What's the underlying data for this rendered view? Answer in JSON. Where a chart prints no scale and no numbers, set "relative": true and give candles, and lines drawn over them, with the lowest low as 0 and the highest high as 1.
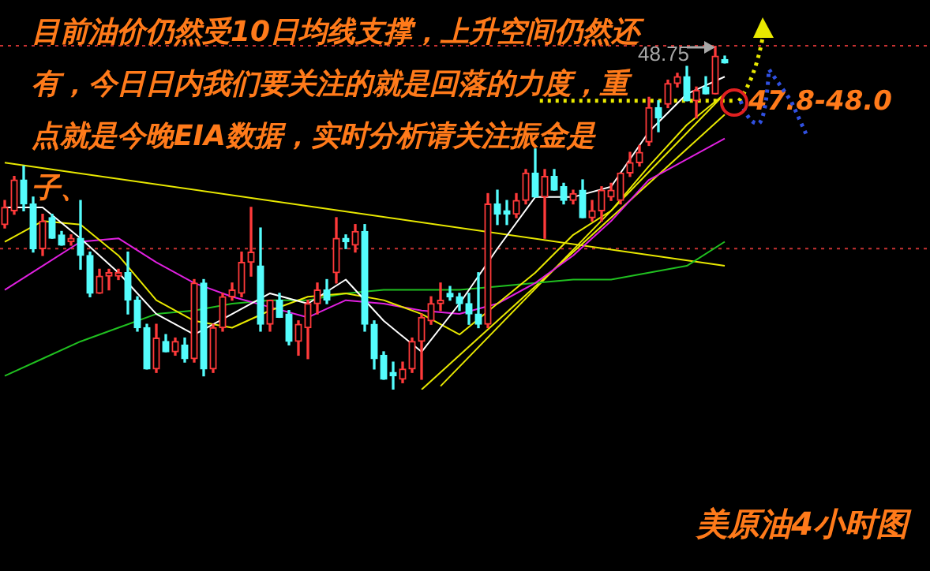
{
  "chart_data": {
    "type": "candlestick",
    "title": "目前油价仍然受10日均线支撑，上升空间仍然还有，今日日内我们要关注的就是回落的力度，重点就是今晚EIA数据，实时分析请关注振金是子、",
    "relative": true,
    "categories": [
      null,
      null,
      null,
      null,
      null,
      null,
      null,
      null,
      null,
      null,
      null,
      null,
      null,
      null,
      null,
      null,
      null,
      null,
      null,
      null,
      null,
      null,
      null,
      null,
      null,
      null,
      null,
      null,
      null,
      null,
      null,
      null,
      null,
      null,
      null,
      null,
      null,
      null,
      null,
      null,
      null,
      null,
      null,
      null,
      null,
      null,
      null,
      null,
      null,
      null,
      null,
      null,
      null,
      null,
      null,
      null,
      null,
      null,
      null,
      null,
      null,
      null,
      null,
      null,
      null,
      null,
      null,
      null,
      null,
      null,
      null,
      null,
      null,
      null,
      null,
      null,
      null
    ],
    "ohlc": [
      [
        0.48,
        0.55,
        0.47,
        0.53
      ],
      [
        0.52,
        0.62,
        0.51,
        0.61
      ],
      [
        0.61,
        0.65,
        0.52,
        0.54
      ],
      [
        0.54,
        0.56,
        0.4,
        0.41
      ],
      [
        0.41,
        0.51,
        0.39,
        0.49
      ],
      [
        0.5,
        0.51,
        0.44,
        0.44
      ],
      [
        0.45,
        0.46,
        0.42,
        0.42
      ],
      [
        0.43,
        0.45,
        0.42,
        0.44
      ],
      [
        0.44,
        0.55,
        0.35,
        0.39
      ],
      [
        0.39,
        0.4,
        0.27,
        0.28
      ],
      [
        0.28,
        0.35,
        0.28,
        0.33
      ],
      [
        0.33,
        0.35,
        0.29,
        0.34
      ],
      [
        0.33,
        0.35,
        0.32,
        0.34
      ],
      [
        0.34,
        0.4,
        0.22,
        0.26
      ],
      [
        0.26,
        0.27,
        0.17,
        0.18
      ],
      [
        0.18,
        0.19,
        0.06,
        0.06
      ],
      [
        0.06,
        0.19,
        0.05,
        0.15
      ],
      [
        0.14,
        0.16,
        0.11,
        0.11
      ],
      [
        0.11,
        0.15,
        0.1,
        0.14
      ],
      [
        0.13,
        0.15,
        0.08,
        0.09
      ],
      [
        0.09,
        0.32,
        0.08,
        0.31
      ],
      [
        0.31,
        0.32,
        0.04,
        0.06
      ],
      [
        0.06,
        0.19,
        0.05,
        0.18
      ],
      [
        0.18,
        0.28,
        0.17,
        0.27
      ],
      [
        0.27,
        0.31,
        0.26,
        0.29
      ],
      [
        0.28,
        0.4,
        0.27,
        0.37
      ],
      [
        0.37,
        0.53,
        0.33,
        0.4
      ],
      [
        0.36,
        0.47,
        0.17,
        0.19
      ],
      [
        0.19,
        0.26,
        0.17,
        0.26
      ],
      [
        0.26,
        0.28,
        0.21,
        0.21
      ],
      [
        0.22,
        0.23,
        0.13,
        0.14
      ],
      [
        0.14,
        0.2,
        0.1,
        0.19
      ],
      [
        0.18,
        0.26,
        0.09,
        0.25
      ],
      [
        0.25,
        0.31,
        0.22,
        0.29
      ],
      [
        0.29,
        0.32,
        0.25,
        0.26
      ],
      [
        0.34,
        0.5,
        0.31,
        0.44
      ],
      [
        0.44,
        0.45,
        0.41,
        0.43
      ],
      [
        0.42,
        0.48,
        0.4,
        0.46
      ],
      [
        0.46,
        0.48,
        0.17,
        0.19
      ],
      [
        0.19,
        0.2,
        0.06,
        0.09
      ],
      [
        0.1,
        0.11,
        0.03,
        0.03
      ],
      [
        0.05,
        0.08,
        0,
        0.04
      ],
      [
        0.03,
        0.08,
        0.02,
        0.06
      ],
      [
        0.06,
        0.15,
        0.05,
        0.14
      ],
      [
        0.14,
        0.22,
        0.03,
        0.21
      ],
      [
        0.2,
        0.27,
        0.19,
        0.25
      ],
      [
        0.25,
        0.31,
        0.23,
        0.26
      ],
      [
        0.28,
        0.3,
        0.26,
        0.27
      ],
      [
        0.27,
        0.28,
        0.23,
        0.25
      ],
      [
        0.25,
        0.28,
        0.19,
        0.22
      ],
      [
        0.22,
        0.34,
        0.18,
        0.19
      ],
      [
        0.19,
        0.57,
        0.18,
        0.54
      ],
      [
        0.54,
        0.58,
        0.48,
        0.51
      ],
      [
        0.52,
        0.55,
        0.48,
        0.51
      ],
      [
        0.51,
        0.57,
        0.5,
        0.55
      ],
      [
        0.55,
        0.64,
        0.54,
        0.63
      ],
      [
        0.63,
        0.7,
        0.56,
        0.56
      ],
      [
        0.56,
        0.64,
        0.44,
        0.62
      ],
      [
        0.62,
        0.64,
        0.58,
        0.58
      ],
      [
        0.59,
        0.6,
        0.54,
        0.55
      ],
      [
        0.55,
        0.58,
        0.54,
        0.57
      ],
      [
        0.58,
        0.61,
        0.5,
        0.5
      ],
      [
        0.5,
        0.55,
        0.49,
        0.52
      ],
      [
        0.52,
        0.59,
        0.49,
        0.58
      ],
      [
        0.56,
        0.6,
        0.55,
        0.58
      ],
      [
        0.55,
        0.63,
        0.54,
        0.63
      ],
      [
        0.63,
        0.69,
        0.62,
        0.66
      ],
      [
        0.66,
        0.71,
        0.65,
        0.69
      ],
      [
        0.72,
        0.85,
        0.71,
        0.82
      ],
      [
        0.82,
        0.84,
        0.75,
        0.79
      ],
      [
        0.83,
        0.9,
        0.82,
        0.89
      ],
      [
        0.89,
        0.92,
        0.88,
        0.91
      ],
      [
        0.91,
        0.94,
        0.84,
        0.84
      ],
      [
        0.84,
        0.88,
        0.79,
        0.87
      ],
      [
        0.88,
        0.91,
        0.86,
        0.86
      ],
      [
        0.86,
        1,
        0.86,
        0.97
      ],
      [
        0.96,
        0.97,
        0.95,
        0.95
      ]
    ],
    "series": [
      {
        "type": "line",
        "color": "#ffffff",
        "values": [
          0.53,
          null,
          null,
          null,
          0.53,
          null,
          null,
          null,
          0.44,
          null,
          null,
          null,
          0.34,
          null,
          null,
          null,
          0.22,
          null,
          null,
          null,
          0.16,
          null,
          null,
          null,
          0.22,
          null,
          null,
          null,
          0.28,
          null,
          null,
          null,
          0.25,
          null,
          null,
          null,
          0.32,
          null,
          null,
          null,
          0.2,
          null,
          null,
          null,
          0.11,
          null,
          null,
          null,
          0.25,
          null,
          null,
          null,
          0.41,
          null,
          null,
          null,
          0.56,
          null,
          null,
          null,
          0.56,
          null,
          null,
          null,
          0.59,
          null,
          null,
          null,
          0.75,
          null,
          null,
          null,
          0.86,
          null,
          null,
          null,
          0.91
        ]
      },
      {
        "type": "line",
        "color": "#e8e800",
        "values": [
          0.43,
          null,
          null,
          null,
          0.49,
          null,
          null,
          null,
          0.48,
          null,
          null,
          null,
          0.39,
          null,
          null,
          null,
          0.26,
          null,
          null,
          null,
          0.2,
          null,
          null,
          null,
          0.18,
          null,
          null,
          null,
          0.23,
          null,
          null,
          null,
          0.27,
          null,
          null,
          null,
          0.28,
          null,
          null,
          null,
          0.26,
          null,
          null,
          null,
          0.22,
          null,
          null,
          null,
          0.16,
          null,
          null,
          null,
          0.25,
          null,
          null,
          null,
          0.34,
          null,
          null,
          null,
          0.45,
          null,
          null,
          null,
          0.52,
          null,
          null,
          null,
          0.65,
          null,
          null,
          null,
          0.77,
          null,
          null,
          null,
          0.86
        ]
      },
      {
        "type": "line",
        "color": "#e020e0",
        "values": [
          0.29,
          null,
          null,
          null,
          0.36,
          null,
          null,
          null,
          0.43,
          null,
          null,
          null,
          0.44,
          null,
          null,
          null,
          0.37,
          null,
          null,
          null,
          0.31,
          null,
          null,
          null,
          0.27,
          null,
          null,
          null,
          0.24,
          null,
          null,
          null,
          0.21,
          null,
          null,
          null,
          0.26,
          null,
          null,
          null,
          0.25,
          null,
          null,
          null,
          0.23,
          null,
          null,
          null,
          0.22,
          null,
          null,
          null,
          0.25,
          null,
          null,
          null,
          0.31,
          null,
          null,
          null,
          0.39,
          null,
          null,
          null,
          0.49,
          null,
          null,
          null,
          0.61,
          null,
          null,
          null,
          0.67,
          null,
          null,
          null,
          0.73
        ]
      },
      {
        "type": "line",
        "color": "#20c020",
        "values": [
          0.04,
          null,
          null,
          null,
          0.09,
          null,
          null,
          null,
          0.14,
          null,
          null,
          null,
          0.18,
          null,
          null,
          null,
          0.22,
          null,
          null,
          null,
          0.23,
          null,
          null,
          null,
          0.25,
          null,
          null,
          null,
          0.26,
          null,
          null,
          null,
          0.26,
          null,
          null,
          null,
          0.28,
          null,
          null,
          null,
          0.29,
          null,
          null,
          null,
          0.29,
          null,
          null,
          null,
          0.29,
          null,
          null,
          null,
          0.3,
          null,
          null,
          null,
          0.31,
          null,
          null,
          null,
          0.32,
          null,
          null,
          null,
          0.32,
          null,
          null,
          null,
          0.34,
          null,
          null,
          null,
          0.36,
          null,
          null,
          null,
          0.43
        ]
      },
      {
        "type": "line",
        "color": "#e8e800",
        "values": [
          0.66,
          null,
          null,
          null,
          null,
          null,
          null,
          null,
          null,
          null,
          null,
          null,
          null,
          null,
          null,
          null,
          null,
          null,
          null,
          null,
          null,
          null,
          null,
          null,
          null,
          null,
          null,
          null,
          null,
          null,
          null,
          null,
          null,
          null,
          null,
          null,
          null,
          null,
          null,
          null,
          null,
          null,
          null,
          null,
          null,
          null,
          null,
          null,
          null,
          null,
          null,
          null,
          null,
          null,
          null,
          null,
          null,
          null,
          null,
          null,
          null,
          null,
          null,
          null,
          null,
          null,
          null,
          null,
          null,
          null,
          null,
          null,
          null,
          null,
          null,
          null,
          0.36
        ]
      },
      {
        "type": "line",
        "color": "#e8e800",
        "values": [
          null,
          null,
          null,
          null,
          null,
          null,
          null,
          null,
          null,
          null,
          null,
          null,
          null,
          null,
          null,
          null,
          null,
          null,
          null,
          null,
          null,
          null,
          null,
          null,
          null,
          null,
          null,
          null,
          null,
          null,
          null,
          null,
          null,
          null,
          null,
          null,
          null,
          null,
          null,
          null,
          null,
          null,
          null,
          null,
          0,
          null,
          null,
          null,
          null,
          null,
          null,
          null,
          null,
          null,
          null,
          null,
          null,
          null,
          null,
          null,
          null,
          null,
          null,
          null,
          null,
          null,
          null,
          null,
          null,
          null,
          null,
          null,
          null,
          null,
          null,
          null,
          0.8
        ]
      },
      {
        "type": "line",
        "color": "#e8e800",
        "values": [
          null,
          null,
          null,
          null,
          null,
          null,
          null,
          null,
          null,
          null,
          null,
          null,
          null,
          null,
          null,
          null,
          null,
          null,
          null,
          null,
          null,
          null,
          null,
          null,
          null,
          null,
          null,
          null,
          null,
          null,
          null,
          null,
          null,
          null,
          null,
          null,
          null,
          null,
          null,
          null,
          null,
          null,
          null,
          null,
          null,
          null,
          0.01,
          null,
          null,
          null,
          null,
          null,
          null,
          null,
          null,
          null,
          null,
          null,
          null,
          null,
          null,
          null,
          null,
          null,
          null,
          null,
          null,
          null,
          null,
          null,
          null,
          null,
          null,
          null,
          null,
          null,
          0.86
        ]
      }
    ],
    "ref_lines": [
      {
        "axis": "y",
        "value": 1,
        "color": "#c83232",
        "line_style": "dotted"
      },
      {
        "axis": "y",
        "value": 0.41,
        "color": "#c83232",
        "line_style": "dotted"
      },
      {
        "axis": "y",
        "value": 0.84,
        "color": "#e8e800",
        "line_style": "dotted"
      }
    ],
    "annotations": [
      {
        "text": "48.75",
        "y": 1
      },
      "47.8-48.0",
      "美原油4小时图"
    ]
  }
}
